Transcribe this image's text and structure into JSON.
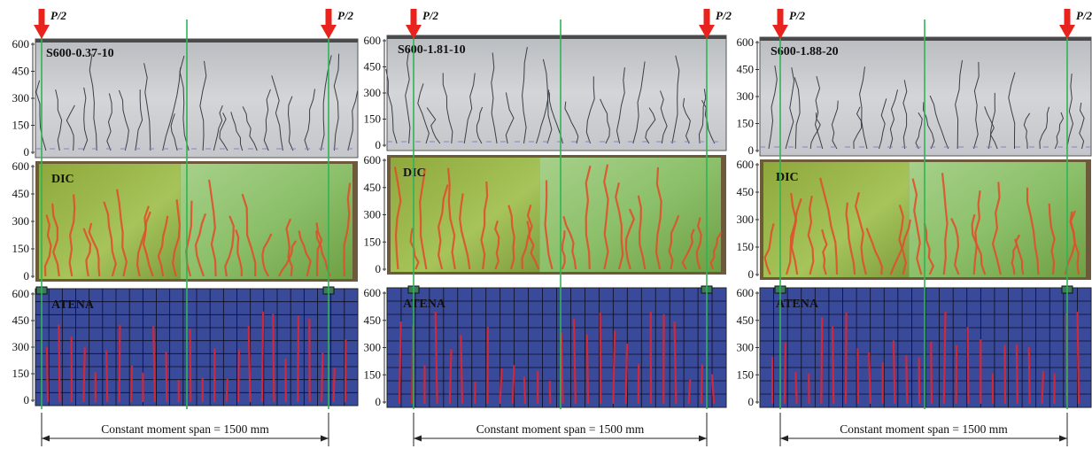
{
  "load_label": "P/2",
  "y_ticks": [
    "600",
    "450",
    "300",
    "150",
    "0"
  ],
  "rows": {
    "dic": "DIC",
    "atena": "ATENA"
  },
  "specimens": [
    {
      "name": "S600-0.37-10",
      "span_text": "Constant moment span = 1500 mm"
    },
    {
      "name": "S600-1.81-10",
      "span_text": "Constant moment span = 1500 mm"
    },
    {
      "name": "S600-1.88-20",
      "span_text": "Constant moment span = 1500 mm"
    }
  ],
  "colors": {
    "load_arrow": "#e8221c",
    "guide_line": "#2fb455",
    "concrete": "#cfd1d4",
    "dic_green": "#7fb24a",
    "atena_blue": "#3a4a9a",
    "atena_crack": "#d0283a"
  }
}
